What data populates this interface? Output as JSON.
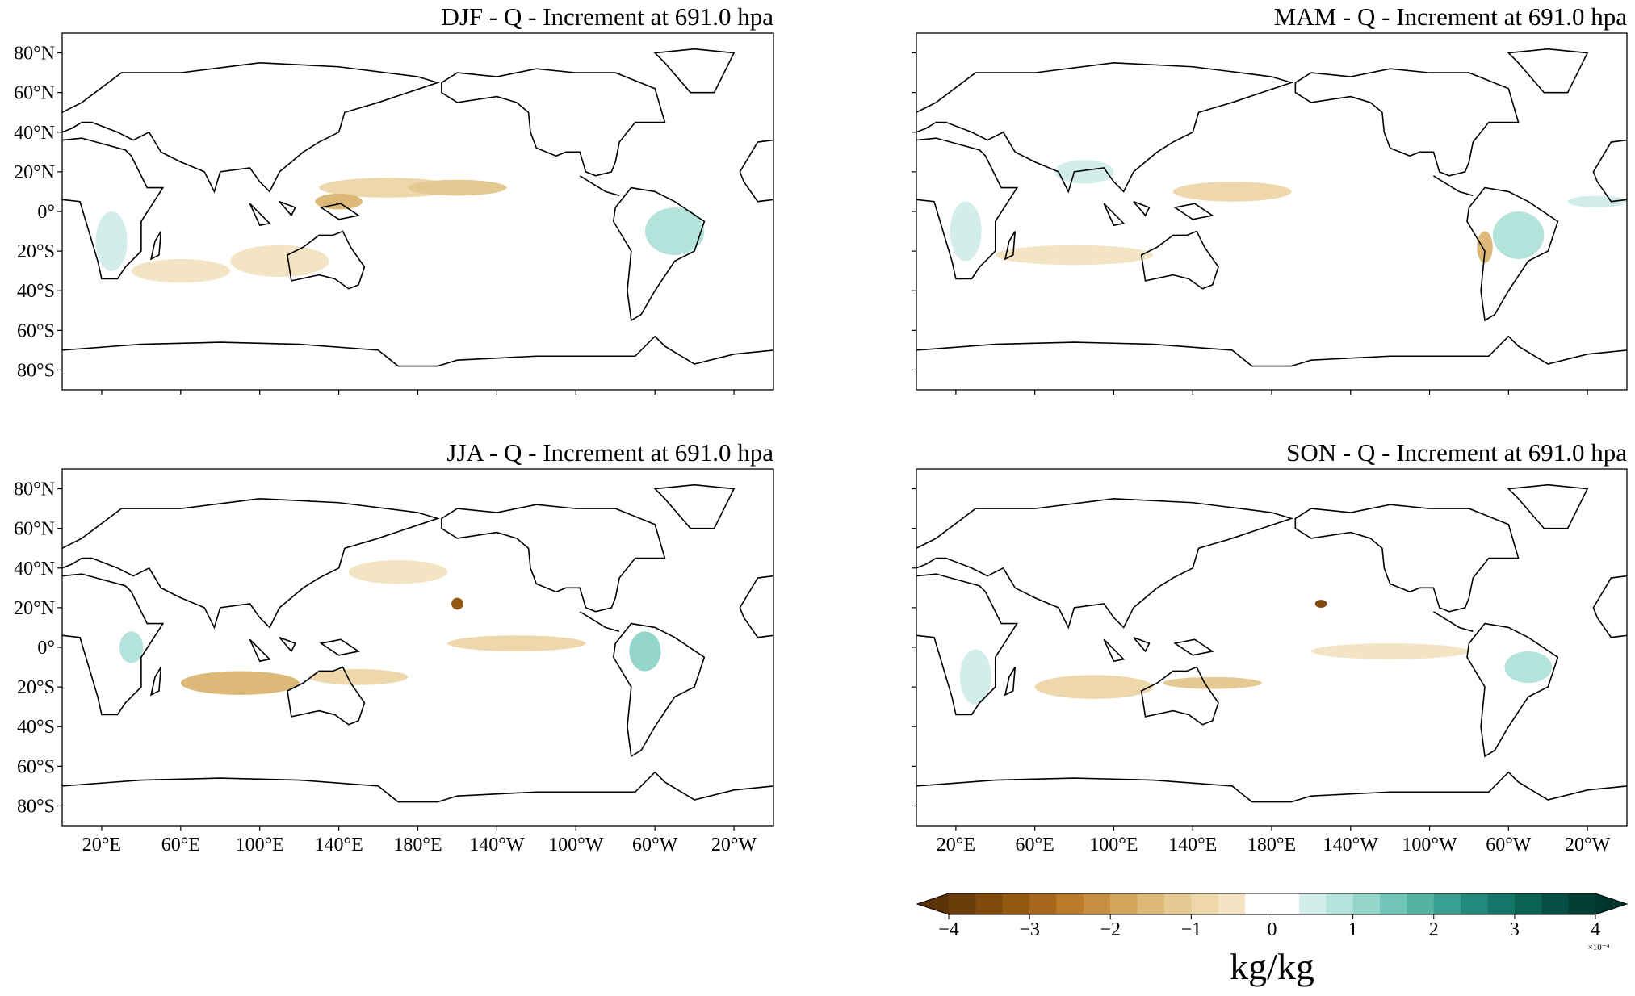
{
  "panels": [
    {
      "title": "DJF - Q - Increment at 691.0 hpa"
    },
    {
      "title": "MAM - Q - Increment at 691.0 hpa"
    },
    {
      "title": "JJA - Q - Increment at 691.0 hpa"
    },
    {
      "title": "SON - Q - Increment at 691.0 hpa"
    }
  ],
  "xlim": [
    0,
    360
  ],
  "ylim": [
    -90,
    90
  ],
  "lat_ticks": [
    {
      "value": 80,
      "label": "80°N"
    },
    {
      "value": 60,
      "label": "60°N"
    },
    {
      "value": 40,
      "label": "40°N"
    },
    {
      "value": 20,
      "label": "20°N"
    },
    {
      "value": 0,
      "label": "0°"
    },
    {
      "value": -20,
      "label": "20°S"
    },
    {
      "value": -40,
      "label": "40°S"
    },
    {
      "value": -60,
      "label": "60°S"
    },
    {
      "value": -80,
      "label": "80°S"
    }
  ],
  "lon_ticks": [
    {
      "value": 20,
      "label": "20°E"
    },
    {
      "value": 60,
      "label": "60°E"
    },
    {
      "value": 100,
      "label": "100°E"
    },
    {
      "value": 140,
      "label": "140°E"
    },
    {
      "value": 180,
      "label": "180°E"
    },
    {
      "value": 220,
      "label": "140°W"
    },
    {
      "value": 260,
      "label": "100°W"
    },
    {
      "value": 300,
      "label": "60°W"
    },
    {
      "value": 340,
      "label": "20°W"
    }
  ],
  "colorbar": {
    "lim": [
      -4,
      4
    ],
    "ticks": [
      {
        "value": -4,
        "label": "−4"
      },
      {
        "value": -3,
        "label": "−3"
      },
      {
        "value": -2,
        "label": "−2"
      },
      {
        "value": -1,
        "label": "−1"
      },
      0,
      1,
      2,
      3,
      4
    ],
    "label": "kg/kg",
    "multiplier": "×10⁻⁴",
    "colors": [
      "#6a3d0a",
      "#7f4a0c",
      "#935812",
      "#a6681d",
      "#b97b2b",
      "#c68e43",
      "#d3a55d",
      "#dcb978",
      "#e5c992",
      "#eed7aa",
      "#f3e4c3",
      "#ffffff",
      "#ffffff",
      "#d3eeea",
      "#b4e3dc",
      "#94d6cc",
      "#74c5b9",
      "#55b2a5",
      "#3a9e91",
      "#24897c",
      "#157568",
      "#0c6155",
      "#064e43",
      "#033f35"
    ],
    "extend_colors": [
      "#5a3309",
      "#01362c"
    ]
  }
}
